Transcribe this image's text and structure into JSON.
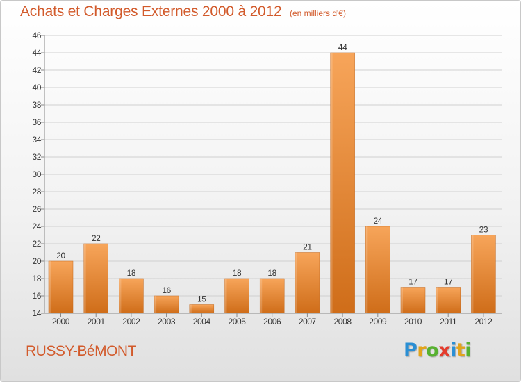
{
  "header": {
    "title": "Achats et Charges Externes 2000 à 2012",
    "subtitle": "(en milliers d'€)"
  },
  "footer": {
    "commune": "RUSSY-BéMONT",
    "logo_letters": [
      {
        "char": "P",
        "color": "#2a8fd4"
      },
      {
        "char": "r",
        "color": "#e2a41c"
      },
      {
        "char": "o",
        "color": "#57b130"
      },
      {
        "char": "x",
        "color": "#e43b2c"
      },
      {
        "char": "i",
        "color": "#2a8fd4"
      },
      {
        "char": "t",
        "color": "#e2a41c"
      },
      {
        "char": "i",
        "color": "#57b130"
      }
    ]
  },
  "colors": {
    "bar_light": "#f7a55a",
    "bar_dark": "#cf6d19",
    "grid": "#d0d0d0",
    "axis": "#888888",
    "title": "#d25a2b"
  },
  "chart_data": {
    "type": "bar",
    "title": "Achats et Charges Externes 2000 à 2012",
    "subtitle": "(en milliers d'€)",
    "xlabel": "",
    "ylabel": "",
    "categories": [
      "2000",
      "2001",
      "2002",
      "2003",
      "2004",
      "2005",
      "2006",
      "2007",
      "2008",
      "2009",
      "2010",
      "2011",
      "2012"
    ],
    "values": [
      20,
      22,
      18,
      16,
      15,
      18,
      18,
      21,
      44,
      24,
      17,
      17,
      23
    ],
    "data_labels": [
      "20",
      "22",
      "18",
      "16",
      "15",
      "18",
      "18",
      "21",
      "44",
      "24",
      "17",
      "17",
      "23"
    ],
    "ylim": [
      14,
      46
    ],
    "yticks": [
      14,
      16,
      18,
      20,
      22,
      24,
      26,
      28,
      30,
      32,
      34,
      36,
      38,
      40,
      42,
      44,
      46
    ],
    "ytick_labels": [
      "14",
      "16",
      "18",
      "20",
      "22",
      "24",
      "26",
      "28",
      "30",
      "32",
      "34",
      "36",
      "38",
      "40",
      "42",
      "44",
      "46"
    ],
    "grid": true,
    "legend": "none"
  }
}
